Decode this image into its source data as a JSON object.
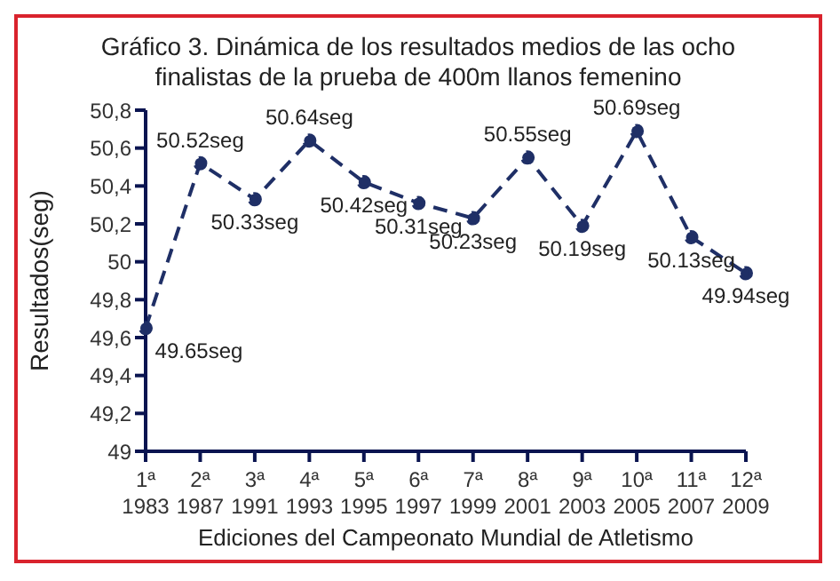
{
  "chart_data": {
    "type": "line",
    "title": "Gráfico 3. Dinámica  de los resultados medios de las ocho finalistas de la prueba de 400m llanos femenino",
    "xlabel": "Ediciones  del Campeonato Mundial de Atletismo",
    "ylabel": "Resultados(seg)",
    "categories": [
      "1ª\n1983",
      "2ª\n1987",
      "3ª\n1991",
      "4ª\n1993",
      "5ª\n1995",
      "6ª\n1997",
      "7ª\n1999",
      "8ª\n2001",
      "9ª\n2003",
      "10ª\n2005",
      "11ª\n2007",
      "12ª\n2009"
    ],
    "series": [
      {
        "color": "#1f2f66",
        "values": [
          49.65,
          50.52,
          50.33,
          50.64,
          50.42,
          50.31,
          50.23,
          50.55,
          50.19,
          50.69,
          50.13,
          49.94
        ],
        "value_labels": [
          "49.65seg",
          "50.52seg",
          "50.33seg",
          "50.64seg",
          "50.42seg",
          "50.31seg",
          "50.23seg",
          "50.55seg",
          "50.19seg",
          "50.69seg",
          "50.13seg",
          "49.94seg"
        ]
      }
    ],
    "ylim": [
      49,
      50.8
    ],
    "yticks": [
      {
        "value": 49,
        "label": "49"
      },
      {
        "value": 49.2,
        "label": "49,2"
      },
      {
        "value": 49.4,
        "label": "49,4"
      },
      {
        "value": 49.6,
        "label": "49,6"
      },
      {
        "value": 49.8,
        "label": "49,8"
      },
      {
        "value": 50,
        "label": "50"
      },
      {
        "value": 50.2,
        "label": "50,2"
      },
      {
        "value": 50.4,
        "label": "50,4"
      },
      {
        "value": 50.6,
        "label": "50,6"
      },
      {
        "value": 50.8,
        "label": "50,8"
      }
    ],
    "marker": "circle",
    "line_style": "dashed",
    "grid": false
  }
}
